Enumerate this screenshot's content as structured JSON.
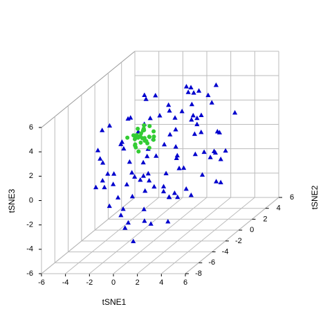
{
  "chart_data": {
    "type": "scatter3d",
    "x_label": "tSNE1",
    "y_label": "tSNE2",
    "z_label": "tSNE3",
    "xlim": [
      -6,
      6
    ],
    "ylim": [
      -8,
      6
    ],
    "zlim": [
      -6,
      6
    ],
    "xticks": [
      -6,
      -4,
      -2,
      0,
      2,
      4,
      6
    ],
    "yticks": [
      -8,
      -6,
      -4,
      -2,
      0,
      2,
      4,
      6
    ],
    "zticks": [
      -6,
      -4,
      -2,
      0,
      2,
      4,
      6
    ],
    "grid": true,
    "series": [
      {
        "color": "#0000cd",
        "marker": "triangle",
        "x": [
          -4.5,
          -3.8,
          -3.2,
          -2.9,
          -2.5,
          -2.1,
          -1.8,
          -1.5,
          -1.2,
          -0.9,
          -0.6,
          -0.3,
          0.0,
          0.3,
          0.6,
          0.9,
          1.2,
          1.5,
          1.8,
          2.1,
          2.4,
          2.7,
          3.0,
          3.3,
          3.6,
          3.9,
          4.2,
          4.5,
          -4.0,
          -3.5,
          -3.0,
          -2.7,
          -2.3,
          -1.9,
          -1.6,
          -1.3,
          -1.0,
          -0.7,
          -0.4,
          -0.1,
          0.2,
          0.5,
          0.8,
          1.1,
          1.4,
          1.7,
          2.0,
          2.3,
          2.6,
          2.9,
          3.2,
          3.5,
          3.8,
          4.1,
          4.4,
          -4.2,
          -3.6,
          -3.1,
          -2.6,
          -2.2,
          -1.7,
          -1.4,
          -1.1,
          -0.8,
          -0.5,
          -0.2,
          0.1,
          0.4,
          0.7,
          1.0,
          1.3,
          1.6,
          1.9,
          2.2,
          2.5,
          2.8,
          3.1,
          3.4,
          3.7,
          4.0,
          -4.8,
          -3.3,
          -2.4,
          -1.6,
          -0.7,
          0.4,
          1.1,
          1.9,
          2.6,
          3.4,
          4.3,
          -3.9,
          -2.0,
          -0.1,
          1.5,
          3.0,
          -1.0,
          0.8,
          2.2,
          -2.8
        ],
        "y": [
          1.2,
          -3.5,
          2.8,
          -0.6,
          -5.1,
          3.4,
          -2.2,
          0.8,
          -4.3,
          2.1,
          -1.4,
          -6.0,
          3.7,
          -0.2,
          -3.1,
          1.6,
          -4.8,
          2.9,
          -1.9,
          0.4,
          -2.7,
          1.9,
          -5.5,
          0.6,
          -1.3,
          3.2,
          -3.9,
          -0.8,
          -2.5,
          0.3,
          -4.6,
          1.5,
          -1.1,
          -3.3,
          2.4,
          -5.7,
          0.1,
          -2.0,
          3.0,
          -4.1,
          1.1,
          -3.7,
          2.6,
          -1.6,
          -5.3,
          0.9,
          3.5,
          -2.9,
          -0.4,
          2.2,
          -4.4,
          1.3,
          -2.3,
          -6.2,
          0.0,
          -1.8,
          3.1,
          -3.0,
          0.7,
          -4.9,
          2.0,
          -0.9,
          -3.6,
          1.7,
          -2.6,
          3.3,
          -5.0,
          -1.2,
          2.5,
          -3.4,
          0.2,
          -6.4,
          1.4,
          -2.1,
          3.6,
          -0.5,
          -4.0,
          2.7,
          -1.5,
          0.9,
          -1.0,
          -2.0,
          -3.0,
          -4.0,
          -5.0,
          -6.5,
          -7.0,
          -5.8,
          -4.5,
          -3.2,
          -2.4,
          3.9,
          4.0,
          3.8,
          3.5,
          2.0,
          -6.8,
          -6.6,
          -7.3,
          -5.6
        ],
        "z": [
          0.5,
          2.1,
          -1.2,
          3.4,
          1.8,
          -0.5,
          4.2,
          -2.8,
          2.6,
          0.9,
          3.8,
          -1.6,
          1.4,
          -3.2,
          2.9,
          4.6,
          0.2,
          -0.9,
          3.1,
          1.7,
          -2.1,
          3.6,
          1.1,
          -0.3,
          4.0,
          2.2,
          -1.4,
          0.7,
          3.3,
          -2.4,
          1.9,
          4.4,
          -0.8,
          2.7,
          -3.5,
          0.3,
          5.0,
          -1.9,
          2.4,
          3.9,
          -0.6,
          2.3,
          4.1,
          -2.6,
          1.0,
          3.0,
          -1.1,
          4.5,
          0.4,
          -3.0,
          2.8,
          1.5,
          3.7,
          -0.2,
          2.0,
          -1.7,
          1.3,
          3.9,
          -2.2,
          0.8,
          2.5,
          -3.9,
          1.2,
          3.5,
          -0.4,
          4.3,
          0.6,
          -2.3,
          3.2,
          1.6,
          -1.0,
          2.4,
          4.8,
          0.0,
          -1.8,
          3.4,
          1.9,
          -0.7,
          2.7,
          -2.5,
          -1.5,
          -0.5,
          -2.0,
          -3.0,
          -3.6,
          -2.5,
          -3.8,
          -2.9,
          -3.3,
          -1.2,
          -0.4,
          3.0,
          2.0,
          4.0,
          3.5,
          5.0,
          -1.0,
          -0.3,
          -2.0,
          0.0
        ]
      },
      {
        "color": "#33cc33",
        "marker": "circle",
        "x": [
          -2.8,
          -2.5,
          -2.3,
          -2.1,
          -1.9,
          -1.7,
          -1.5,
          -2.6,
          -2.2,
          -1.8,
          -1.4,
          -2.9,
          -2.4,
          -2.0,
          -1.6,
          -2.7,
          -2.3,
          -1.9,
          -1.5,
          -2.1,
          -2.5,
          -1.8,
          -2.2,
          -1.6,
          -2.4,
          -2.0,
          -1.7,
          -2.6,
          -1.3,
          -2.0
        ],
        "y": [
          0.3,
          -0.5,
          0.8,
          -0.2,
          0.5,
          -0.8,
          0.1,
          1.0,
          -0.4,
          0.6,
          -0.1,
          -0.7,
          0.4,
          -0.9,
          0.9,
          0.2,
          -0.6,
          0.0,
          0.7,
          1.2,
          -0.3,
          -1.0,
          0.5,
          -0.2,
          0.9,
          0.3,
          -0.5,
          -0.1,
          0.4,
          -0.7
        ],
        "z": [
          1.5,
          2.0,
          1.2,
          1.8,
          0.9,
          2.3,
          1.6,
          1.1,
          2.5,
          1.4,
          0.8,
          1.9,
          1.0,
          2.2,
          1.7,
          0.7,
          1.3,
          2.6,
          1.1,
          2.0,
          1.6,
          0.9,
          2.1,
          1.4,
          1.8,
          1.2,
          2.4,
          1.0,
          1.5,
          1.9
        ]
      }
    ]
  }
}
